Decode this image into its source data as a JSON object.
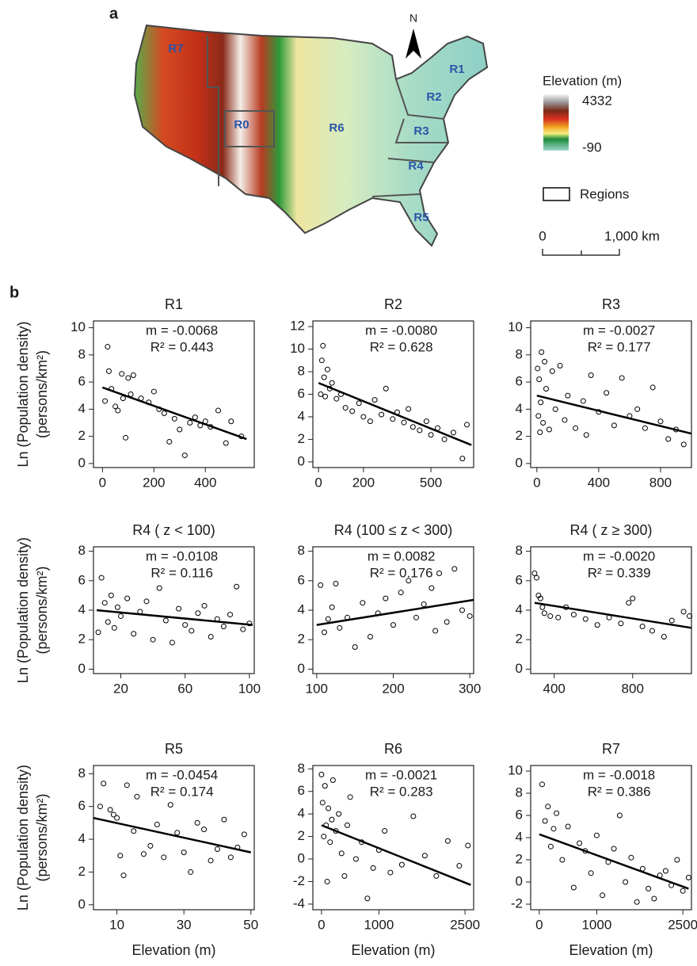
{
  "panel_labels": [
    "a",
    "b"
  ],
  "map": {
    "north": "N",
    "regions": [
      "R0",
      "R1",
      "R2",
      "R3",
      "R4",
      "R5",
      "R6",
      "R7"
    ],
    "legend_title": "Elevation (m)",
    "legend_max": "4332",
    "legend_min": "-90",
    "regions_label": "Regions",
    "scale_labels": [
      "0",
      "1,000 km"
    ]
  },
  "chart_data": [
    {
      "type": "scatter",
      "title": "R1",
      "annotations": [
        "m = -0.0068",
        "R² = 0.443"
      ],
      "ylabel": [
        "Ln (Population density)",
        "(persons/km²)"
      ],
      "x": [
        10,
        20,
        25,
        35,
        50,
        60,
        75,
        80,
        90,
        100,
        110,
        120,
        150,
        180,
        200,
        220,
        240,
        260,
        280,
        300,
        320,
        340,
        360,
        380,
        400,
        420,
        450,
        480,
        500,
        540
      ],
      "values": [
        4.6,
        8.6,
        6.8,
        5.5,
        4.2,
        3.9,
        6.6,
        4.8,
        1.9,
        6.3,
        5.1,
        6.5,
        4.8,
        4.5,
        5.3,
        4.0,
        3.7,
        1.6,
        3.3,
        2.5,
        0.6,
        3.0,
        3.4,
        2.8,
        3.1,
        2.7,
        3.9,
        1.5,
        3.1,
        2.0
      ],
      "fit": {
        "x": [
          0,
          560
        ],
        "y": [
          5.6,
          1.8
        ]
      },
      "xlim": [
        -35,
        590
      ],
      "xticks": [
        0,
        200,
        400
      ],
      "ylim": [
        -0.3,
        10.5
      ],
      "yticks": [
        0,
        2,
        4,
        6,
        8,
        10
      ],
      "color": "#000000"
    },
    {
      "type": "scatter",
      "title": "R2",
      "annotations": [
        "m = -0.0080",
        "R² = 0.628"
      ],
      "x": [
        10,
        15,
        20,
        25,
        30,
        40,
        50,
        60,
        80,
        100,
        120,
        150,
        180,
        200,
        230,
        250,
        280,
        300,
        330,
        350,
        380,
        400,
        420,
        450,
        480,
        500,
        530,
        560,
        600,
        640,
        660
      ],
      "values": [
        6.0,
        9.0,
        10.3,
        7.5,
        5.8,
        8.2,
        6.5,
        7.0,
        5.6,
        6.0,
        4.8,
        4.5,
        5.2,
        4.0,
        3.6,
        5.5,
        4.2,
        6.5,
        3.8,
        4.4,
        3.5,
        4.7,
        3.1,
        2.8,
        3.6,
        2.4,
        3.0,
        2.0,
        2.6,
        0.3,
        3.3
      ],
      "fit": {
        "x": [
          0,
          680
        ],
        "y": [
          7.0,
          1.5
        ]
      },
      "xlim": [
        -25,
        690
      ],
      "xticks": [
        0,
        200,
        500
      ],
      "ylim": [
        -0.5,
        12.5
      ],
      "yticks": [
        0,
        2,
        4,
        6,
        8,
        10,
        12
      ],
      "color": "#000000"
    },
    {
      "type": "scatter",
      "title": "R3",
      "annotations": [
        "m = -0.0027",
        "R² = 0.177"
      ],
      "x": [
        5,
        10,
        15,
        20,
        25,
        30,
        40,
        50,
        60,
        80,
        100,
        120,
        150,
        180,
        200,
        250,
        300,
        320,
        350,
        400,
        450,
        500,
        550,
        600,
        650,
        700,
        750,
        800,
        850,
        900,
        950
      ],
      "values": [
        7.0,
        3.5,
        6.2,
        2.3,
        4.5,
        8.2,
        3.0,
        7.5,
        5.5,
        2.5,
        6.8,
        4.0,
        7.2,
        3.2,
        5.0,
        2.6,
        4.6,
        2.1,
        6.5,
        3.8,
        5.2,
        2.8,
        6.3,
        3.5,
        4.0,
        2.6,
        5.6,
        3.1,
        1.8,
        2.5,
        1.4
      ],
      "fit": {
        "x": [
          0,
          1000
        ],
        "y": [
          5.0,
          2.2
        ]
      },
      "xlim": [
        -40,
        1000
      ],
      "xticks": [
        0,
        400,
        800
      ],
      "ylim": [
        -0.3,
        10.5
      ],
      "yticks": [
        0,
        2,
        4,
        6,
        8,
        10
      ],
      "color": "#000000"
    },
    {
      "type": "scatter",
      "title": "R4 ( z < 100)",
      "annotations": [
        "m = -0.0108",
        "R² = 0.116"
      ],
      "ylabel": [
        "Ln (Population density)",
        "(persons/km²)"
      ],
      "x": [
        6,
        8,
        10,
        12,
        14,
        16,
        18,
        20,
        24,
        28,
        32,
        36,
        40,
        44,
        48,
        52,
        56,
        60,
        64,
        68,
        72,
        76,
        80,
        84,
        88,
        92,
        96,
        100
      ],
      "values": [
        2.5,
        6.2,
        4.5,
        3.2,
        5.0,
        2.8,
        4.2,
        3.6,
        4.8,
        2.4,
        3.9,
        4.6,
        2.0,
        5.5,
        3.3,
        1.8,
        4.1,
        3.0,
        2.6,
        3.8,
        4.3,
        2.2,
        3.4,
        2.9,
        3.7,
        5.6,
        2.7,
        3.1
      ],
      "fit": {
        "x": [
          5,
          102
        ],
        "y": [
          4.0,
          3.0
        ]
      },
      "xlim": [
        3,
        103
      ],
      "xticks": [
        20,
        60,
        100
      ],
      "ylim": [
        -0.3,
        8.3
      ],
      "yticks": [
        0,
        2,
        4,
        6,
        8
      ],
      "color": "#000000"
    },
    {
      "type": "scatter",
      "title": "R4 (100 ≤ z < 300)",
      "annotations": [
        "m = 0.0082",
        "R² = 0.176"
      ],
      "x": [
        105,
        110,
        115,
        120,
        125,
        130,
        140,
        150,
        160,
        170,
        180,
        190,
        200,
        210,
        220,
        230,
        240,
        250,
        255,
        260,
        270,
        280,
        290,
        300
      ],
      "values": [
        5.7,
        2.5,
        3.4,
        4.2,
        5.8,
        2.8,
        3.5,
        1.5,
        4.5,
        2.2,
        3.8,
        4.8,
        3.0,
        5.2,
        6.0,
        3.5,
        4.4,
        5.5,
        2.6,
        6.5,
        3.2,
        6.8,
        4.0,
        3.6
      ],
      "fit": {
        "x": [
          100,
          305
        ],
        "y": [
          3.0,
          4.7
        ]
      },
      "xlim": [
        95,
        305
      ],
      "xticks": [
        100,
        200,
        300
      ],
      "ylim": [
        -0.3,
        8.3
      ],
      "yticks": [
        0,
        2,
        4,
        6,
        8
      ],
      "color": "#000000"
    },
    {
      "type": "scatter",
      "title": "R4 ( z ≥ 300)",
      "annotations": [
        "m = -0.0020",
        "R² = 0.339"
      ],
      "x": [
        300,
        310,
        320,
        330,
        340,
        350,
        380,
        420,
        460,
        500,
        560,
        620,
        680,
        740,
        780,
        800,
        850,
        900,
        960,
        1000,
        1060,
        1090
      ],
      "values": [
        6.5,
        6.2,
        5.0,
        4.8,
        4.2,
        3.8,
        3.6,
        3.5,
        4.2,
        3.7,
        3.4,
        3.0,
        3.5,
        3.1,
        4.5,
        4.8,
        2.9,
        2.6,
        2.2,
        3.3,
        3.9,
        3.6
      ],
      "fit": {
        "x": [
          300,
          1100
        ],
        "y": [
          4.5,
          2.8
        ]
      },
      "xlim": [
        280,
        1100
      ],
      "xticks": [
        400,
        800
      ],
      "ylim": [
        -0.3,
        8.3
      ],
      "yticks": [
        0,
        2,
        4,
        6,
        8
      ],
      "color": "#000000"
    },
    {
      "type": "scatter",
      "title": "R5",
      "annotations": [
        "m = -0.0454",
        "R² = 0.174"
      ],
      "ylabel": [
        "Ln (Population density)",
        "(persons/km²)"
      ],
      "xlabel": "Elevation (m)",
      "x": [
        5,
        6,
        8,
        9,
        10,
        11,
        12,
        13,
        15,
        16,
        18,
        20,
        22,
        24,
        26,
        28,
        30,
        32,
        34,
        36,
        38,
        40,
        42,
        44,
        46,
        48
      ],
      "values": [
        6.0,
        7.4,
        5.8,
        5.5,
        5.3,
        3.0,
        1.8,
        7.3,
        4.5,
        6.6,
        3.1,
        3.6,
        4.9,
        2.9,
        6.1,
        4.4,
        3.2,
        2.0,
        5.0,
        4.6,
        2.7,
        3.4,
        5.2,
        2.9,
        3.5,
        4.3
      ],
      "fit": {
        "x": [
          3,
          50
        ],
        "y": [
          5.3,
          3.2
        ]
      },
      "xlim": [
        3,
        51
      ],
      "xticks": [
        10,
        30,
        50
      ],
      "ylim": [
        -0.3,
        8.5
      ],
      "yticks": [
        0,
        2,
        4,
        6,
        8
      ],
      "color": "#000000"
    },
    {
      "type": "scatter",
      "title": "R6",
      "annotations": [
        "m = -0.0021",
        "R² = 0.283"
      ],
      "xlabel": "Elevation (m)",
      "x": [
        0,
        20,
        40,
        60,
        80,
        100,
        120,
        150,
        180,
        200,
        250,
        300,
        350,
        400,
        450,
        500,
        600,
        700,
        800,
        900,
        1000,
        1100,
        1200,
        1400,
        1600,
        1800,
        2000,
        2200,
        2400,
        2550
      ],
      "values": [
        7.5,
        5.0,
        2.0,
        6.5,
        3.0,
        -2.0,
        4.5,
        1.5,
        3.5,
        7.0,
        2.5,
        4.0,
        0.5,
        -1.5,
        3.0,
        5.5,
        0.0,
        1.5,
        -3.5,
        -0.8,
        0.8,
        2.5,
        -1.2,
        -0.5,
        3.8,
        0.3,
        -1.5,
        1.6,
        -0.6,
        1.2
      ],
      "fit": {
        "x": [
          0,
          2600
        ],
        "y": [
          3.0,
          -2.3
        ]
      },
      "xlim": [
        -150,
        2650
      ],
      "xticks": [
        0,
        1000,
        2500
      ],
      "ylim": [
        -4.5,
        8.3
      ],
      "yticks": [
        -4,
        -2,
        0,
        2,
        4,
        6,
        8
      ],
      "color": "#000000"
    },
    {
      "type": "scatter",
      "title": "R7",
      "annotations": [
        "m = -0.0018",
        "R² = 0.386"
      ],
      "xlabel": "Elevation (m)",
      "x": [
        50,
        100,
        150,
        200,
        250,
        300,
        400,
        500,
        600,
        700,
        800,
        900,
        1000,
        1100,
        1200,
        1300,
        1400,
        1500,
        1600,
        1700,
        1800,
        1900,
        2000,
        2100,
        2200,
        2300,
        2400,
        2500,
        2600
      ],
      "values": [
        8.8,
        5.5,
        6.8,
        3.2,
        4.8,
        6.2,
        2.0,
        5.0,
        -0.5,
        3.5,
        2.8,
        0.8,
        4.2,
        -1.2,
        1.8,
        3.0,
        6.0,
        0.0,
        2.2,
        -1.8,
        1.2,
        -0.6,
        -1.5,
        0.6,
        1.0,
        -0.3,
        2.0,
        -0.8,
        0.4
      ],
      "fit": {
        "x": [
          0,
          2600
        ],
        "y": [
          4.3,
          -0.6
        ]
      },
      "xlim": [
        -150,
        2650
      ],
      "xticks": [
        0,
        1000,
        2500
      ],
      "ylim": [
        -2.5,
        10.5
      ],
      "yticks": [
        -2,
        0,
        2,
        4,
        6,
        8,
        10
      ],
      "color": "#000000"
    }
  ]
}
